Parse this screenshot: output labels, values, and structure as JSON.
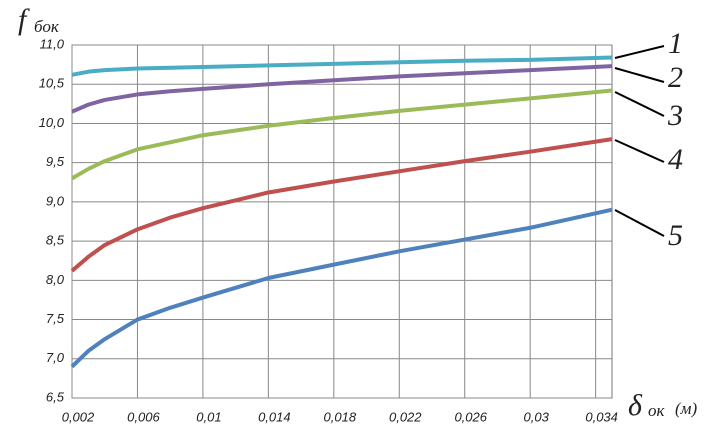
{
  "chart_data": {
    "type": "line",
    "y_label": {
      "symbol": "f",
      "subscript": "бок"
    },
    "x_label": {
      "symbol": "δ",
      "subscript": "ок",
      "unit": "(м)"
    },
    "x": [
      0.002,
      0.003,
      0.004,
      0.006,
      0.008,
      0.01,
      0.014,
      0.018,
      0.022,
      0.026,
      0.03,
      0.035
    ],
    "series": [
      {
        "name": "1",
        "color": "#4bacc6",
        "values": [
          10.62,
          10.66,
          10.68,
          10.7,
          10.71,
          10.72,
          10.74,
          10.76,
          10.78,
          10.8,
          10.81,
          10.84
        ]
      },
      {
        "name": "2",
        "color": "#8064a2",
        "values": [
          10.15,
          10.24,
          10.3,
          10.37,
          10.41,
          10.44,
          10.5,
          10.55,
          10.6,
          10.64,
          10.68,
          10.73
        ]
      },
      {
        "name": "3",
        "color": "#9bbb59",
        "values": [
          9.3,
          9.42,
          9.52,
          9.67,
          9.76,
          9.85,
          9.97,
          10.07,
          10.16,
          10.24,
          10.32,
          10.42
        ]
      },
      {
        "name": "4",
        "color": "#c0504d",
        "values": [
          8.12,
          8.3,
          8.45,
          8.65,
          8.8,
          8.92,
          9.12,
          9.26,
          9.39,
          9.52,
          9.64,
          9.8
        ]
      },
      {
        "name": "5",
        "color": "#4f81bd",
        "values": [
          6.9,
          7.1,
          7.25,
          7.5,
          7.65,
          7.78,
          8.03,
          8.2,
          8.37,
          8.52,
          8.67,
          8.9
        ]
      }
    ],
    "xlim": [
      0.002,
      0.035
    ],
    "xticks": [
      {
        "value": 0.002,
        "label": "0,002"
      },
      {
        "value": 0.006,
        "label": "0,006"
      },
      {
        "value": 0.01,
        "label": "0,01"
      },
      {
        "value": 0.014,
        "label": "0,014"
      },
      {
        "value": 0.018,
        "label": "0,018"
      },
      {
        "value": 0.022,
        "label": "0,022"
      },
      {
        "value": 0.026,
        "label": "0,026"
      },
      {
        "value": 0.03,
        "label": "0,03"
      },
      {
        "value": 0.034,
        "label": "0,034"
      }
    ],
    "ylim": [
      6.5,
      11
    ],
    "yticks": [
      {
        "value": 6.5,
        "label": "6,5"
      },
      {
        "value": 7,
        "label": "7,0"
      },
      {
        "value": 7.5,
        "label": "7,5"
      },
      {
        "value": 8,
        "label": "8,0"
      },
      {
        "value": 8.5,
        "label": "8,5"
      },
      {
        "value": 9,
        "label": "9,0"
      },
      {
        "value": 9.5,
        "label": "9,5"
      },
      {
        "value": 10,
        "label": "10,0"
      },
      {
        "value": 10.5,
        "label": "10,5"
      },
      {
        "value": 11,
        "label": "11,0"
      }
    ],
    "grid": true
  }
}
